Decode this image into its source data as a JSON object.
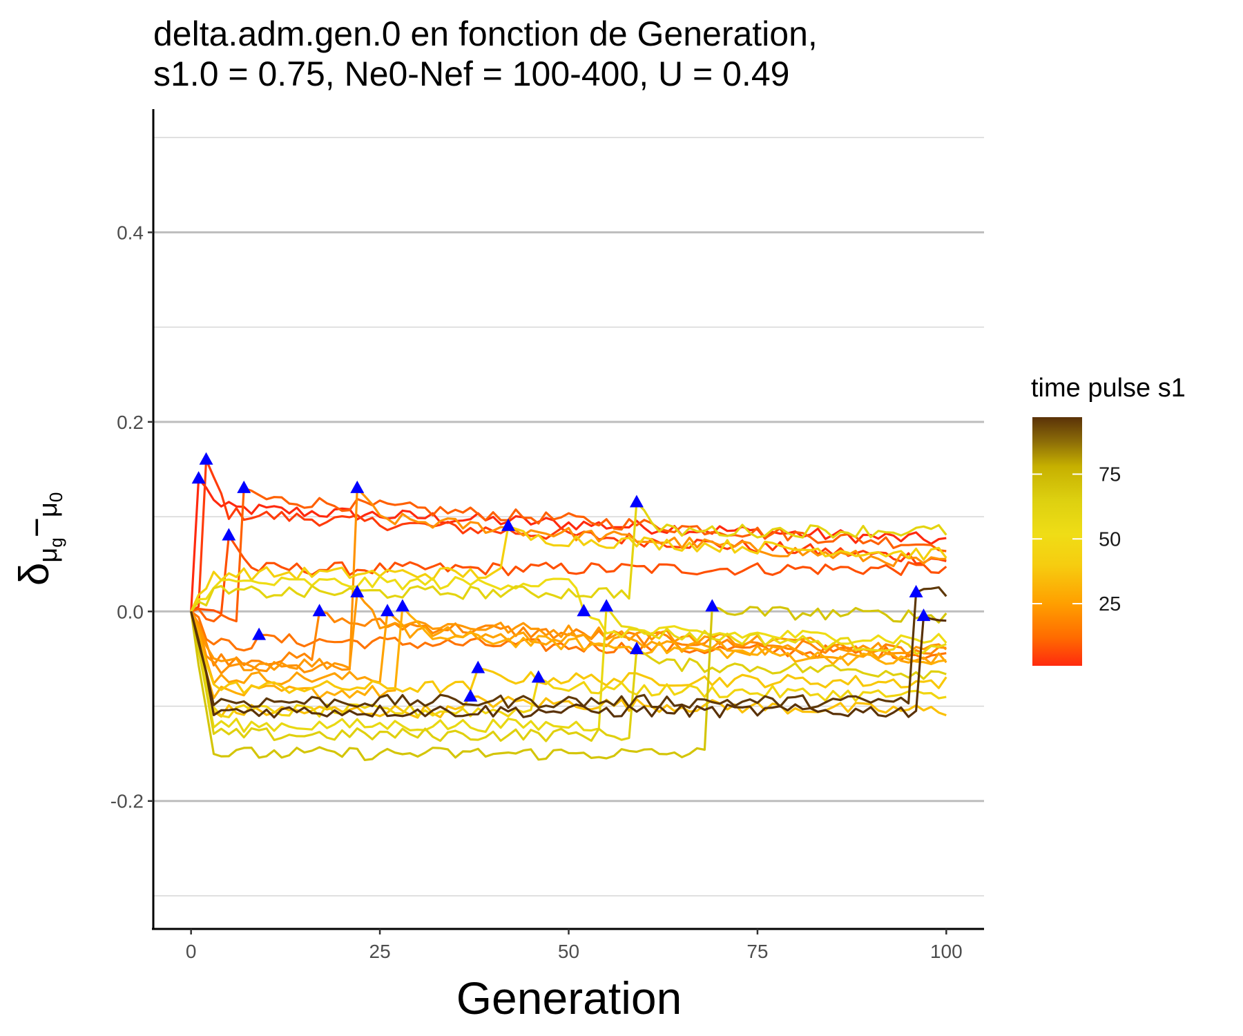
{
  "chart_data": {
    "type": "line",
    "title": [
      "delta.adm.gen.0 en fonction de Generation,",
      "s1.0 = 0.75, Ne0-Nef = 100-400, U = 0.49"
    ],
    "xlabel": "Generation",
    "ylabel": "δμg−μ0",
    "ylabel_parts": {
      "main": "δ",
      "sub1": "μ",
      "sub2": "g",
      "minus": "−",
      "sub3": "μ",
      "sub4": "0"
    },
    "xlim": [
      -5,
      105
    ],
    "ylim": [
      -0.335,
      0.53
    ],
    "x_ticks": [
      0,
      25,
      50,
      75,
      100
    ],
    "x_tick_labels": [
      "0",
      "25",
      "50",
      "75",
      "100"
    ],
    "y_ticks": [
      -0.2,
      0.0,
      0.2,
      0.4
    ],
    "y_tick_labels": [
      "-0.2",
      "0.0",
      "0.2",
      "0.4"
    ],
    "y_minor_gridlines": [
      -0.3,
      -0.1,
      0.1,
      0.3,
      0.5
    ],
    "grid": "horizontal",
    "legend": {
      "title": "time pulse s1",
      "placement": "right",
      "type": "colorbar",
      "range": [
        1,
        97
      ],
      "ticks": [
        25,
        50,
        75
      ],
      "tick_labels": [
        "25",
        "50",
        "75"
      ],
      "gradient_stops": [
        {
          "value": 1,
          "color": "#ff2a0e"
        },
        {
          "value": 12,
          "color": "#ff6c00"
        },
        {
          "value": 25,
          "color": "#ff9f00"
        },
        {
          "value": 40,
          "color": "#f6cd10"
        },
        {
          "value": 52,
          "color": "#efdd16"
        },
        {
          "value": 65,
          "color": "#ddd010"
        },
        {
          "value": 78,
          "color": "#c6b000"
        },
        {
          "value": 88,
          "color": "#8a6a08"
        },
        {
          "value": 97,
          "color": "#5a3208"
        }
      ]
    },
    "pulse_marker": {
      "shape": "triangle",
      "color": "#0000ff"
    },
    "series": [
      {
        "pulse": 1,
        "color": "#ff2a0e",
        "start": 0.0,
        "jump": 0.14,
        "settle": 0.11,
        "end": 0.075
      },
      {
        "pulse": 2,
        "color": "#ff3c0a",
        "start": 0.0,
        "jump": 0.16,
        "settle": 0.105,
        "end": 0.055
      },
      {
        "pulse": 5,
        "color": "#ff5000",
        "start": 0.0,
        "jump": 0.08,
        "settle": 0.045,
        "end": 0.045
      },
      {
        "pulse": 7,
        "color": "#ff6000",
        "start": -0.01,
        "jump": 0.13,
        "settle": 0.12,
        "end": 0.07
      },
      {
        "pulse": 9,
        "color": "#ff7400",
        "start": -0.035,
        "jump": -0.025,
        "settle": -0.03,
        "end": -0.045
      },
      {
        "pulse": 17,
        "color": "#ff8600",
        "start": -0.05,
        "jump": 0.0,
        "settle": -0.01,
        "end": -0.045
      },
      {
        "pulse": 22,
        "color": "#ff9200",
        "start": -0.06,
        "jump": 0.13,
        "settle": 0.1,
        "end": 0.05
      },
      {
        "pulse": 22,
        "color": "#ff9800",
        "start": -0.055,
        "jump": 0.02,
        "settle": -0.01,
        "end": -0.04
      },
      {
        "pulse": 26,
        "color": "#ffa200",
        "start": -0.07,
        "jump": 0.0,
        "settle": -0.02,
        "end": -0.05
      },
      {
        "pulse": 28,
        "color": "#ffae00",
        "start": -0.085,
        "jump": 0.005,
        "settle": -0.025,
        "end": -0.055
      },
      {
        "pulse": 37,
        "color": "#fbc004",
        "start": -0.105,
        "jump": -0.09,
        "settle": -0.095,
        "end": -0.105
      },
      {
        "pulse": 38,
        "color": "#f8c808",
        "start": -0.08,
        "jump": -0.06,
        "settle": -0.07,
        "end": -0.075
      },
      {
        "pulse": 42,
        "color": "#f4d00c",
        "start": 0.04,
        "jump": 0.09,
        "settle": 0.078,
        "end": 0.06
      },
      {
        "pulse": 46,
        "color": "#f1d510",
        "start": -0.105,
        "jump": -0.07,
        "settle": -0.08,
        "end": -0.09
      },
      {
        "pulse": 52,
        "color": "#efdc14",
        "start": 0.03,
        "jump": 0.0,
        "settle": -0.02,
        "end": -0.03
      },
      {
        "pulse": 55,
        "color": "#e9d812",
        "start": -0.12,
        "jump": 0.005,
        "settle": -0.02,
        "end": -0.04
      },
      {
        "pulse": 59,
        "color": "#e4d40f",
        "start": 0.02,
        "jump": 0.115,
        "settle": 0.085,
        "end": 0.085
      },
      {
        "pulse": 59,
        "color": "#e0d00e",
        "start": -0.13,
        "jump": -0.04,
        "settle": -0.055,
        "end": -0.065
      },
      {
        "pulse": 69,
        "color": "#d4c508",
        "start": -0.15,
        "jump": 0.005,
        "settle": 0.0,
        "end": -0.005
      },
      {
        "pulse": 96,
        "color": "#5e3808",
        "start": -0.095,
        "jump": 0.02,
        "settle": 0.03,
        "end": 0.02
      },
      {
        "pulse": 97,
        "color": "#5a3208",
        "start": -0.105,
        "jump": -0.005,
        "settle": -0.01,
        "end": -0.01
      }
    ]
  }
}
